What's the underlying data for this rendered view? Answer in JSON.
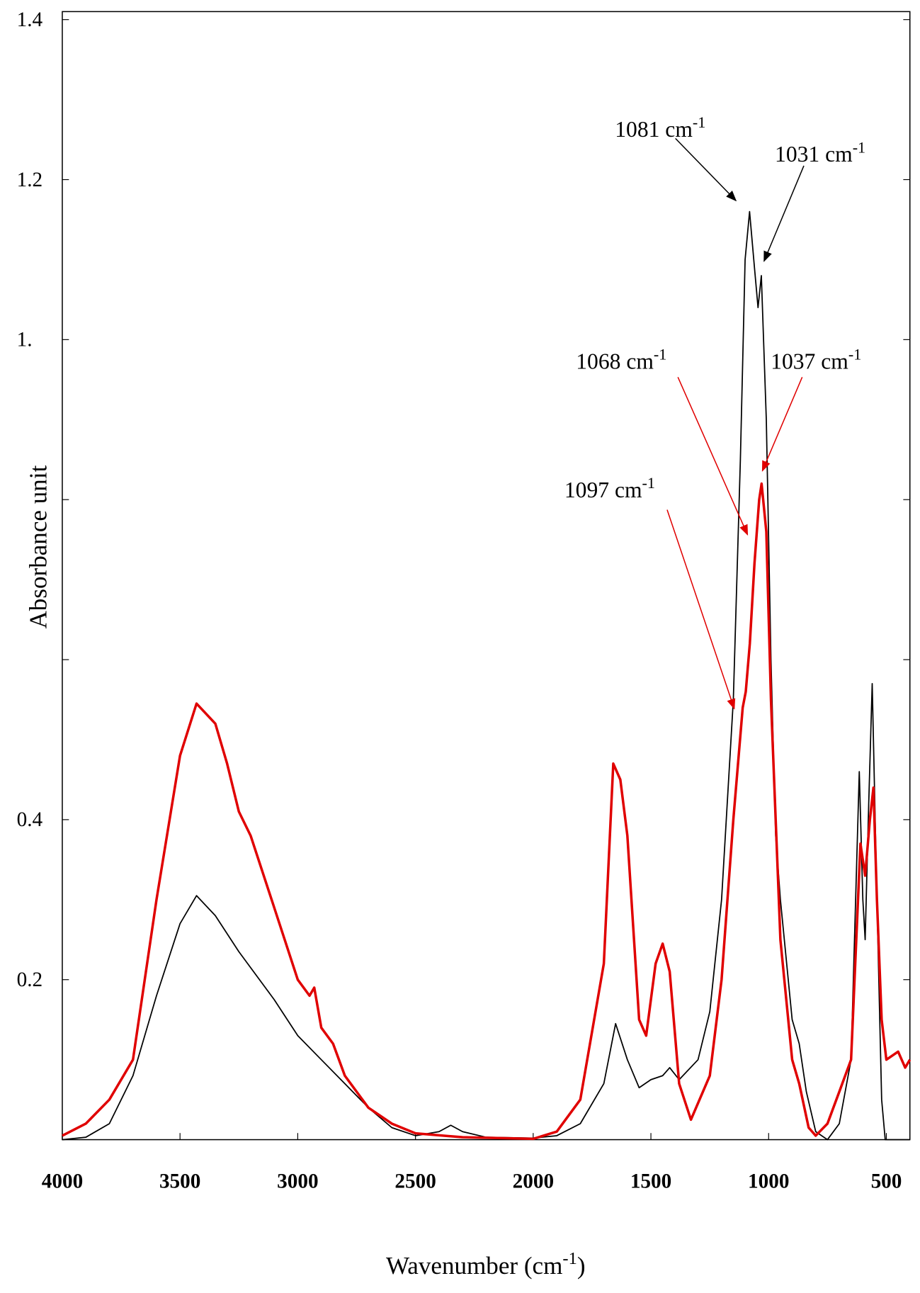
{
  "chart_data": {
    "type": "line",
    "xlabel": {
      "text": "Wavenumber (cm",
      "superscript": "-1",
      "suffix": ")"
    },
    "ylabel": "Absorbance unit",
    "xlim": [
      4000,
      400
    ],
    "ylim": [
      0,
      1.41
    ],
    "xticks": [
      4000,
      3500,
      3000,
      2500,
      2000,
      1500,
      1000,
      500
    ],
    "yticks": [
      {
        "value": 0.2,
        "label": "0.2"
      },
      {
        "value": 0.4,
        "label": "0.4"
      },
      {
        "value": 0.6,
        "label": null
      },
      {
        "value": 0.8,
        "label": null
      },
      {
        "value": 1.0,
        "label": "1."
      },
      {
        "value": 1.2,
        "label": "1.2"
      },
      {
        "value": 1.4,
        "label": "1.4"
      }
    ],
    "series": [
      {
        "color": "#000000",
        "x": [
          4000,
          3900,
          3800,
          3700,
          3600,
          3500,
          3430,
          3350,
          3250,
          3100,
          3000,
          2900,
          2800,
          2700,
          2600,
          2500,
          2400,
          2350,
          2300,
          2200,
          2000,
          1900,
          1800,
          1700,
          1650,
          1600,
          1550,
          1500,
          1450,
          1420,
          1380,
          1300,
          1250,
          1200,
          1150,
          1120,
          1100,
          1081,
          1060,
          1045,
          1031,
          1010,
          990,
          970,
          950,
          900,
          870,
          840,
          800,
          750,
          700,
          650,
          615,
          600,
          590,
          575,
          560,
          540,
          520,
          505,
          400
        ],
        "values": [
          0,
          0.003,
          0.02,
          0.08,
          0.18,
          0.27,
          0.305,
          0.28,
          0.235,
          0.175,
          0.13,
          0.1,
          0.07,
          0.04,
          0.015,
          0.005,
          0.01,
          0.018,
          0.01,
          0.003,
          0.002,
          0.005,
          0.02,
          0.07,
          0.145,
          0.1,
          0.065,
          0.075,
          0.08,
          0.09,
          0.075,
          0.1,
          0.16,
          0.3,
          0.55,
          0.85,
          1.1,
          1.16,
          1.09,
          1.04,
          1.08,
          0.9,
          0.6,
          0.38,
          0.3,
          0.15,
          0.12,
          0.06,
          0.01,
          0,
          0.02,
          0.1,
          0.46,
          0.3,
          0.25,
          0.42,
          0.57,
          0.3,
          0.05,
          0,
          0
        ]
      },
      {
        "color": "#e00000",
        "x": [
          4000,
          3900,
          3800,
          3700,
          3600,
          3500,
          3430,
          3350,
          3300,
          3250,
          3200,
          3100,
          3000,
          2950,
          2930,
          2900,
          2850,
          2800,
          2700,
          2600,
          2500,
          2300,
          2000,
          1900,
          1800,
          1700,
          1660,
          1630,
          1600,
          1550,
          1520,
          1480,
          1450,
          1420,
          1380,
          1330,
          1250,
          1200,
          1150,
          1110,
          1097,
          1080,
          1060,
          1040,
          1030,
          1010,
          990,
          950,
          900,
          870,
          830,
          800,
          750,
          700,
          650,
          610,
          590,
          570,
          555,
          540,
          520,
          500,
          450,
          420,
          400
        ],
        "values": [
          0.005,
          0.02,
          0.05,
          0.1,
          0.3,
          0.48,
          0.545,
          0.52,
          0.47,
          0.41,
          0.38,
          0.29,
          0.2,
          0.18,
          0.19,
          0.14,
          0.12,
          0.08,
          0.04,
          0.02,
          0.008,
          0.003,
          0.001,
          0.01,
          0.05,
          0.22,
          0.47,
          0.45,
          0.38,
          0.15,
          0.13,
          0.22,
          0.245,
          0.21,
          0.07,
          0.025,
          0.08,
          0.2,
          0.4,
          0.54,
          0.56,
          0.62,
          0.72,
          0.8,
          0.82,
          0.76,
          0.55,
          0.25,
          0.1,
          0.07,
          0.015,
          0.005,
          0.02,
          0.06,
          0.1,
          0.37,
          0.33,
          0.4,
          0.44,
          0.3,
          0.15,
          0.1,
          0.11,
          0.09,
          0.1
        ]
      }
    ],
    "annotations": [
      {
        "text": "1081 cm",
        "superscript": "-1",
        "color": "#000000"
      },
      {
        "text": "1031 cm",
        "superscript": "-1",
        "color": "#000000"
      },
      {
        "text": "1068 cm",
        "superscript": "-1",
        "color": "#e00000"
      },
      {
        "text": "1037 cm",
        "superscript": "-1",
        "color": "#e00000"
      },
      {
        "text": "1097 cm",
        "superscript": "-1",
        "color": "#e00000"
      }
    ]
  }
}
